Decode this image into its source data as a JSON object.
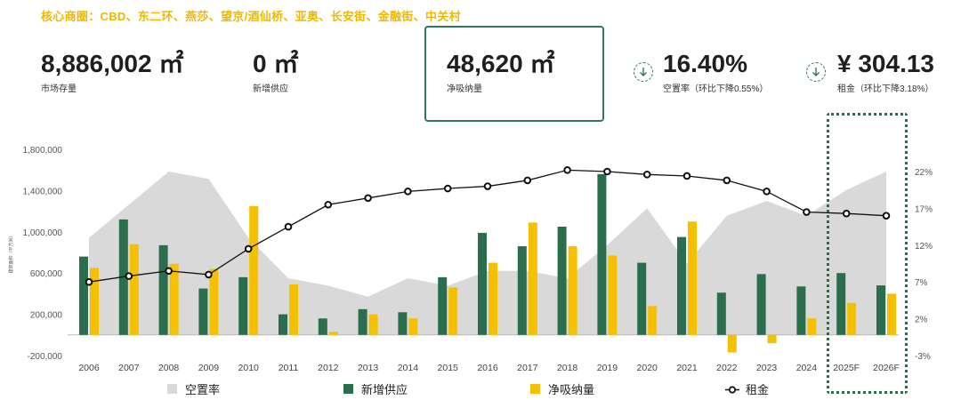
{
  "header": {
    "subtitle": "核心商圈：CBD、东二环、燕莎、望京/酒仙桥、亚奥、长安街、金融街、中关村"
  },
  "kpis": [
    {
      "value": "8,886,002 ㎡",
      "label": "市场存量"
    },
    {
      "value": "0 ㎡",
      "label": "新增供应"
    },
    {
      "value": "48,620 ㎡",
      "label": "净吸纳量"
    },
    {
      "value": "16.40%",
      "label": "空置率（环比下降0.55%）",
      "icon": "down-arrow-icon"
    },
    {
      "value": "¥ 304.13",
      "label": "租金（环比下降3.18%）",
      "icon": "down-arrow-icon"
    }
  ],
  "colors": {
    "vacancy": "#d9d9d9",
    "supply": "#2a6e4e",
    "absorption": "#f5c000",
    "rent": "#111111",
    "accent_green": "#2f7a56",
    "subtitle": "#f0b800"
  },
  "chart_data": {
    "type": "bar",
    "categories": [
      "2006",
      "2007",
      "2008",
      "2009",
      "2010",
      "2011",
      "2012",
      "2013",
      "2014",
      "2015",
      "2016",
      "2017",
      "2018",
      "2019",
      "2020",
      "2021",
      "2022",
      "2023",
      "2024",
      "2025F",
      "2026F"
    ],
    "series": [
      {
        "name": "新增供应",
        "kind": "bar",
        "axis": "left",
        "values": [
          760000,
          1120000,
          870000,
          450000,
          560000,
          200000,
          160000,
          250000,
          220000,
          560000,
          990000,
          860000,
          1050000,
          1560000,
          700000,
          950000,
          410000,
          590000,
          470000,
          600000,
          480000
        ]
      },
      {
        "name": "净吸纳量",
        "kind": "bar",
        "axis": "left",
        "values": [
          650000,
          880000,
          690000,
          640000,
          1250000,
          490000,
          30000,
          200000,
          160000,
          460000,
          700000,
          1090000,
          860000,
          770000,
          280000,
          1100000,
          -170000,
          -80000,
          160000,
          310000,
          400000
        ]
      },
      {
        "name": "空置率",
        "kind": "area",
        "axis": "right",
        "values": [
          13.0,
          17.5,
          22.0,
          21.0,
          13.0,
          7.5,
          6.5,
          5.0,
          7.5,
          6.5,
          8.5,
          8.5,
          7.5,
          12.0,
          17.0,
          9.5,
          16.0,
          18.0,
          16.0,
          19.5,
          22.0
        ]
      },
      {
        "name": "租金",
        "kind": "line",
        "axis": "right",
        "values": [
          7.0,
          7.8,
          8.5,
          8.0,
          11.5,
          14.5,
          17.5,
          18.4,
          19.3,
          19.7,
          20.0,
          20.8,
          22.2,
          22.0,
          21.6,
          21.4,
          20.8,
          19.3,
          16.5,
          16.3,
          16.0
        ]
      }
    ],
    "y_left": {
      "label": "建筑面积（平方米）",
      "ticks": [
        -200000,
        200000,
        600000,
        1000000,
        1400000,
        1800000
      ],
      "tick_labels": [
        "-200,000",
        "200,000",
        "600,000",
        "1,000,000",
        "1,400,000",
        "1,800,000"
      ],
      "range": [
        -200000,
        1800000
      ]
    },
    "y_right": {
      "ticks": [
        -3,
        2,
        7,
        12,
        17,
        22
      ],
      "tick_labels": [
        "-3%",
        "2%",
        "7%",
        "12%",
        "17%",
        "22%"
      ],
      "range": [
        -3,
        22
      ]
    },
    "grid": false,
    "legend_position": "bottom"
  },
  "legend": [
    "空置率",
    "新增供应",
    "净吸纳量",
    "租金"
  ]
}
